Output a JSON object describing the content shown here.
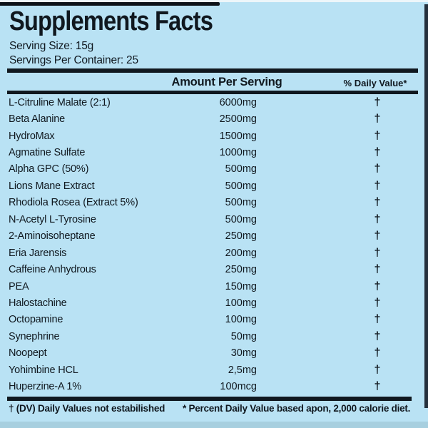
{
  "panel": {
    "title": "Supplements Facts",
    "serving_size": "Serving Size: 15g",
    "servings_per_container": "Servings Per Container: 25",
    "columns": {
      "amount": "Amount Per Serving",
      "daily_value": "% Daily Value*"
    },
    "rows": [
      {
        "name": "L-Citruline Malate (2:1)",
        "amount": "6000mg",
        "dv": "†"
      },
      {
        "name": "Beta Alanine",
        "amount": "2500mg",
        "dv": "†"
      },
      {
        "name": "HydroMax",
        "amount": "1500mg",
        "dv": "†"
      },
      {
        "name": "Agmatine Sulfate",
        "amount": "1000mg",
        "dv": "†"
      },
      {
        "name": "Alpha GPC (50%)",
        "amount": "500mg",
        "dv": "†"
      },
      {
        "name": "Lions Mane Extract",
        "amount": "500mg",
        "dv": "†"
      },
      {
        "name": "Rhodiola Rosea (Extract 5%)",
        "amount": "500mg",
        "dv": "†"
      },
      {
        "name": "N-Acetyl L-Tyrosine",
        "amount": "500mg",
        "dv": "†"
      },
      {
        "name": "2-Aminoisoheptane",
        "amount": "250mg",
        "dv": "†"
      },
      {
        "name": "Eria Jarensis",
        "amount": "200mg",
        "dv": "†"
      },
      {
        "name": "Caffeine Anhydrous",
        "amount": "250mg",
        "dv": "†"
      },
      {
        "name": "PEA",
        "amount": "150mg",
        "dv": "†"
      },
      {
        "name": "Halostachine",
        "amount": "100mg",
        "dv": "†"
      },
      {
        "name": "Octopamine",
        "amount": "100mg",
        "dv": "†"
      },
      {
        "name": "Synephrine",
        "amount": "50mg",
        "dv": "†"
      },
      {
        "name": "Noopept",
        "amount": "30mg",
        "dv": "†"
      },
      {
        "name": "Yohimbine HCL",
        "amount": "2,5mg",
        "dv": "†"
      },
      {
        "name": "Huperzine-A 1%",
        "amount": "100mcg",
        "dv": "†"
      }
    ],
    "footnotes": {
      "left": "† (DV) Daily Values not estabilished",
      "right": "* Percent Daily Value based apon, 2,000 calorie diet."
    },
    "colors": {
      "background": "#b9e2f4",
      "text": "#10181f",
      "edge_top": "#edf6fa",
      "edge_bottom": "#a7cfdf",
      "right_strip": "#25303c"
    }
  }
}
